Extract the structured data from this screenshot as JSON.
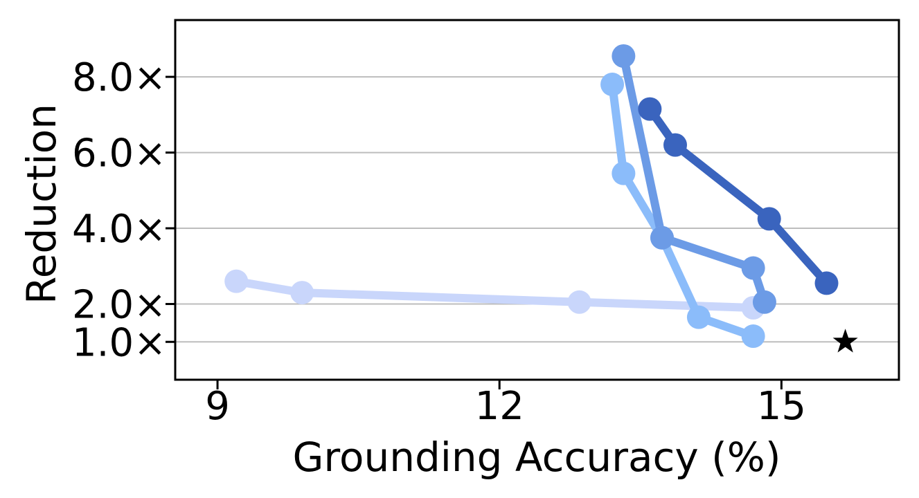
{
  "chart_data": {
    "type": "line",
    "title": "",
    "xlabel": "Grounding Accuracy (%)",
    "ylabel": "Reduction",
    "xlim": [
      8.55,
      16.25
    ],
    "ylim": [
      0.0,
      9.5
    ],
    "xticks": [
      9,
      12,
      15
    ],
    "xtick_labels": [
      "9",
      "12",
      "15"
    ],
    "yticks": [
      1,
      2,
      4,
      6,
      8
    ],
    "ytick_labels": [
      "1.0×",
      "2.0×",
      "4.0×",
      "6.0×",
      "8.0×"
    ],
    "grid": "horizontal",
    "legend": "none",
    "series": [
      {
        "color": "#c9d6fb",
        "x": [
          9.2,
          9.9,
          12.85,
          14.7
        ],
        "y": [
          2.6,
          2.3,
          2.05,
          1.9
        ]
      },
      {
        "color": "#8bbcfa",
        "x": [
          13.2,
          13.32,
          13.73,
          14.12,
          14.7
        ],
        "y": [
          7.8,
          5.45,
          3.75,
          1.65,
          1.15
        ]
      },
      {
        "color": "#6c9be6",
        "x": [
          13.32,
          13.73,
          14.7,
          14.82
        ],
        "y": [
          8.55,
          3.75,
          2.95,
          2.05
        ]
      },
      {
        "color": "#3a64be",
        "x": [
          13.6,
          13.87,
          14.87,
          15.48
        ],
        "y": [
          7.15,
          6.2,
          4.25,
          2.55
        ]
      }
    ],
    "reference_point": {
      "x": 15.68,
      "y": 1.0,
      "marker": "star",
      "color": "#000000"
    }
  }
}
